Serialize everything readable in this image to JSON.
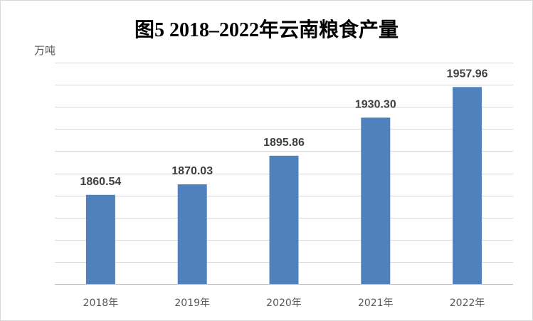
{
  "chart_data": {
    "type": "bar",
    "title": "图5  2018–2022年云南粮食产量",
    "ylabel": "万吨",
    "xlabel": "",
    "categories": [
      "2018年",
      "2019年",
      "2020年",
      "2021年",
      "2022年"
    ],
    "values": [
      1860.54,
      1870.03,
      1895.86,
      1930.3,
      1957.96
    ],
    "value_labels": [
      "1860.54",
      "1870.03",
      "1895.86",
      "1930.30",
      "1957.96"
    ],
    "ylim": [
      1780,
      1980
    ],
    "y_tick_step": 20,
    "y_tick_labels_shown": false,
    "grid": true,
    "legend": "none",
    "colors": {
      "bar": "#4f81bd",
      "grid": "#d9d9d9",
      "label": "#404040"
    }
  }
}
